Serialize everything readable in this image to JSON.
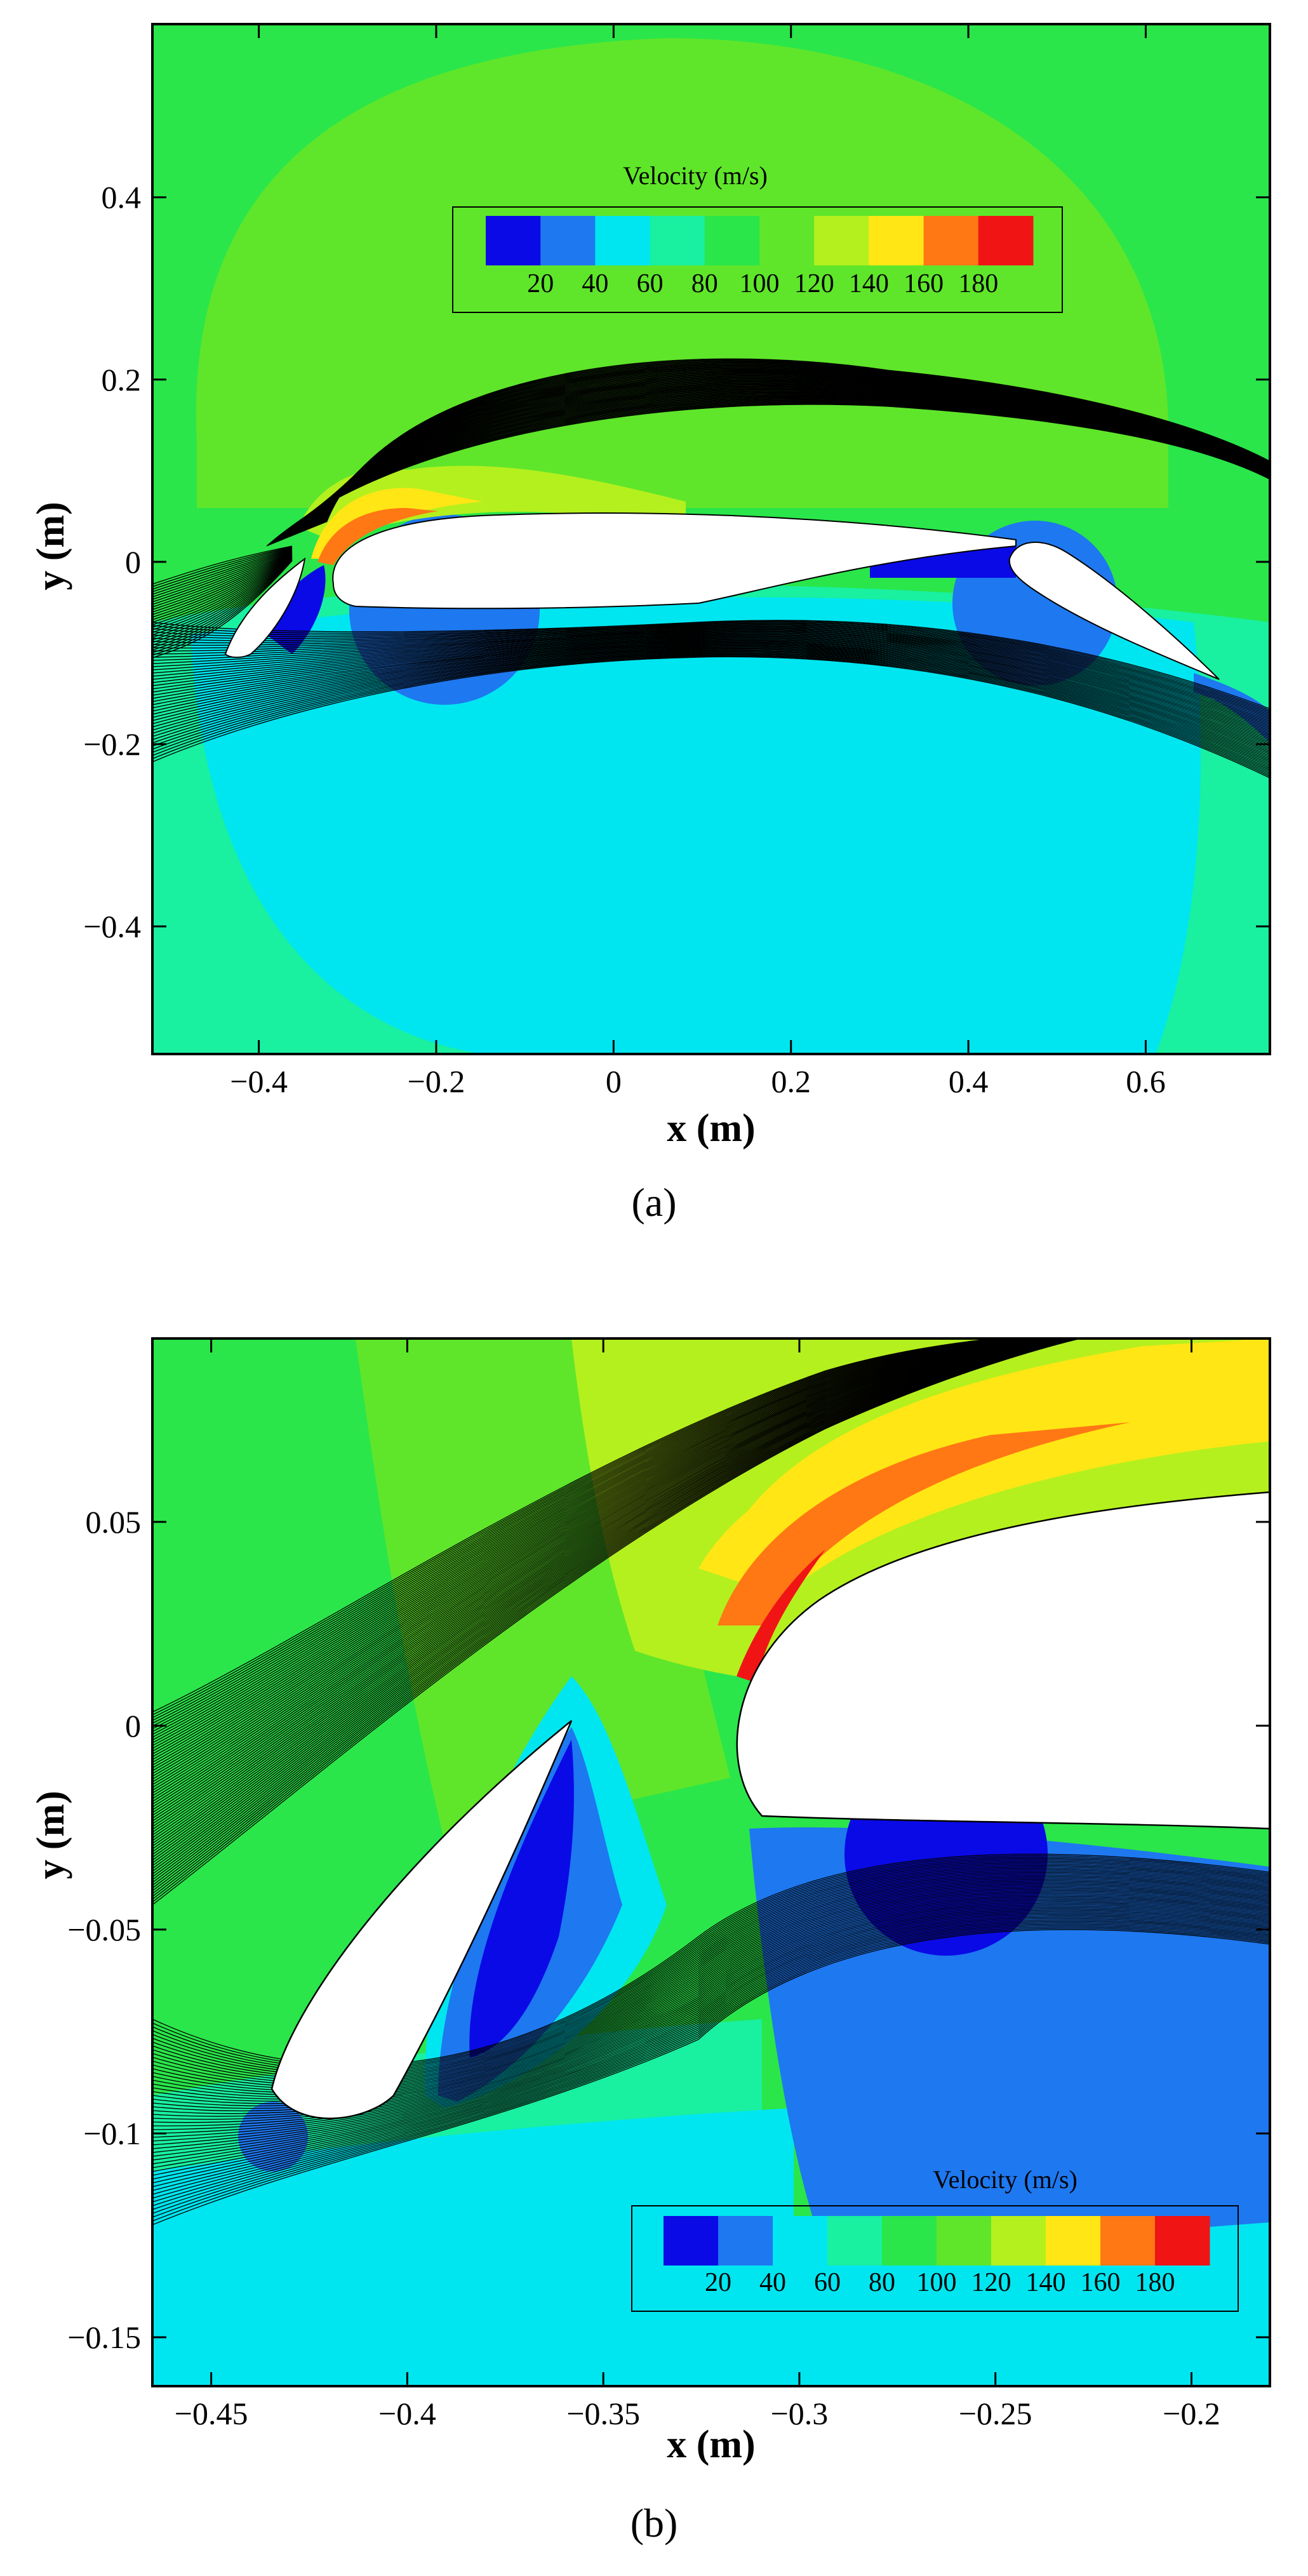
{
  "chart_data": [
    {
      "type": "contour",
      "panel_label": "(a)",
      "xlabel": "x (m)",
      "ylabel": "y (m)",
      "xlim": [
        -0.52,
        0.74
      ],
      "ylim": [
        -0.54,
        0.59
      ],
      "x_ticks": [
        -0.4,
        -0.2,
        0,
        0.2,
        0.4,
        0.6
      ],
      "x_tick_labels": [
        "−0.4",
        "−0.2",
        "0",
        "0.2",
        "0.4",
        "0.6"
      ],
      "y_ticks": [
        0.4,
        0.2,
        0,
        -0.2,
        -0.4
      ],
      "y_tick_labels": [
        "0.4",
        "0.2",
        "0",
        "−0.2",
        "−0.4"
      ],
      "legend": {
        "title": "Velocity (m/s)",
        "position": "top-center",
        "levels": [
          20,
          40,
          60,
          80,
          100,
          120,
          140,
          160,
          180
        ],
        "level_labels": [
          "20",
          "40",
          "60",
          "80",
          "100",
          "120",
          "140",
          "160",
          "180"
        ]
      },
      "grid": false
    },
    {
      "type": "contour",
      "panel_label": "(b)",
      "xlabel": "x (m)",
      "ylabel": "y (m)",
      "xlim": [
        -0.465,
        -0.18
      ],
      "ylim": [
        -0.162,
        0.095
      ],
      "x_ticks": [
        -0.45,
        -0.4,
        -0.35,
        -0.3,
        -0.25,
        -0.2
      ],
      "x_tick_labels": [
        "−0.45",
        "−0.4",
        "−0.35",
        "−0.3",
        "−0.25",
        "−0.2"
      ],
      "y_ticks": [
        0.05,
        0,
        -0.05,
        -0.1,
        -0.15
      ],
      "y_tick_labels": [
        "0.05",
        "0",
        "−0.05",
        "−0.1",
        "−0.15"
      ],
      "legend": {
        "title": "Velocity (m/s)",
        "position": "bottom-right",
        "levels": [
          20,
          40,
          60,
          80,
          100,
          120,
          140,
          160,
          180
        ],
        "level_labels": [
          "20",
          "40",
          "60",
          "80",
          "100",
          "120",
          "140",
          "160",
          "180"
        ]
      },
      "grid": false
    }
  ],
  "colors": {
    "band_0_20": "#0a0ae6",
    "band_20_40": "#1e78f0",
    "band_40_60": "#00e6f0",
    "band_60_80": "#19f0a0",
    "band_80_100": "#2ae64a",
    "band_100_120": "#5fe62a",
    "band_120_140": "#b4f01e",
    "band_140_160": "#ffe614",
    "band_160_180": "#ff7814",
    "band_180_200": "#f01414"
  }
}
